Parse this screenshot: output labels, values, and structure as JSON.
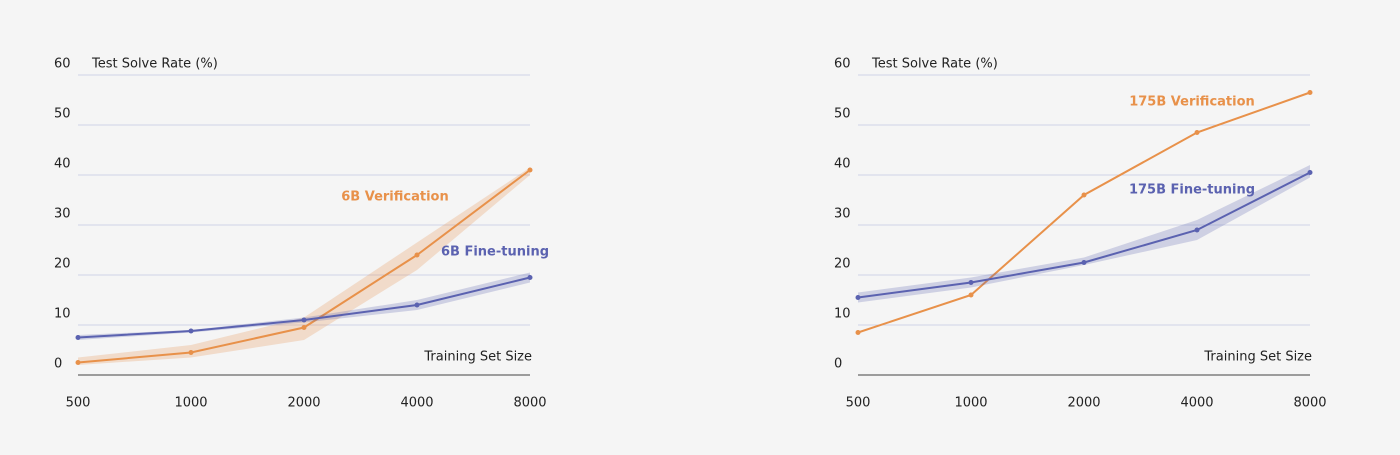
{
  "chart_data": [
    {
      "type": "line",
      "ylabel": "Test Solve Rate (%)",
      "xlabel": "Training Set Size",
      "categories": [
        "500",
        "1000",
        "2000",
        "4000",
        "8000"
      ],
      "ylim": [
        0,
        60
      ],
      "yticks": [
        0,
        10,
        20,
        30,
        40,
        50,
        60
      ],
      "grid": true,
      "series": [
        {
          "name": "6B Verification",
          "color": "#e8914a",
          "values": [
            2.5,
            4.5,
            9.5,
            24,
            41
          ],
          "lower": [
            2,
            3.5,
            7,
            21,
            40
          ],
          "upper": [
            3.5,
            6,
            11.5,
            26.5,
            41.5
          ]
        },
        {
          "name": "6B Fine-tuning",
          "color": "#5b62b0",
          "values": [
            7.5,
            8.8,
            11,
            14,
            19.5
          ],
          "lower": [
            7,
            8.5,
            10.5,
            13,
            18.5
          ],
          "upper": [
            8,
            9,
            11.5,
            15,
            20.5
          ]
        }
      ]
    },
    {
      "type": "line",
      "ylabel": "Test Solve Rate (%)",
      "xlabel": "Training Set Size",
      "categories": [
        "500",
        "1000",
        "2000",
        "4000",
        "8000"
      ],
      "ylim": [
        0,
        60
      ],
      "yticks": [
        0,
        10,
        20,
        30,
        40,
        50,
        60
      ],
      "grid": true,
      "series": [
        {
          "name": "175B Verification",
          "color": "#e8914a",
          "values": [
            8.5,
            16,
            36,
            48.5,
            56.5
          ]
        },
        {
          "name": "175B Fine-tuning",
          "color": "#5b62b0",
          "values": [
            15.5,
            18.5,
            22.5,
            29,
            40.5
          ],
          "lower": [
            14.5,
            17.5,
            22,
            27,
            39.5
          ],
          "upper": [
            16.5,
            19.5,
            23.5,
            31,
            42
          ]
        }
      ]
    }
  ]
}
